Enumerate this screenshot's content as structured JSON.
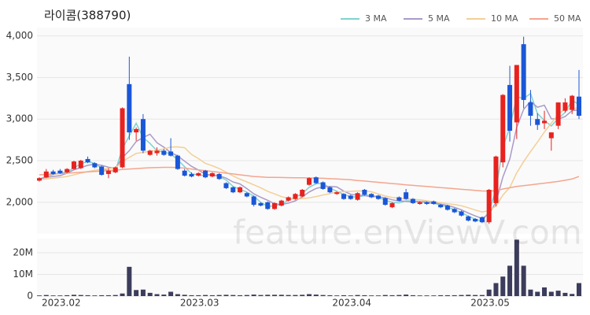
{
  "chart_data": [
    {
      "type": "candlestick",
      "title": "라이콤(388790)",
      "watermark": "feature.enViewV.com",
      "up_color": "#e8221f",
      "down_color": "#1a56d8",
      "ylim": [
        1620,
        4100
      ],
      "yticks": [
        {
          "value": 2000,
          "label": "2,000"
        },
        {
          "value": 2500,
          "label": "2,500"
        },
        {
          "value": 3000,
          "label": "3,000"
        },
        {
          "value": 3500,
          "label": "3,500"
        },
        {
          "value": 4000,
          "label": "4,000"
        }
      ],
      "grid": true,
      "legend": "top-right",
      "open": [
        2260,
        2300,
        2370,
        2380,
        2360,
        2400,
        2410,
        2520,
        2470,
        2430,
        2340,
        2360,
        2420,
        3420,
        2840,
        3000,
        2570,
        2590,
        2620,
        2610,
        2560,
        2380,
        2340,
        2320,
        2380,
        2310,
        2340,
        2230,
        2180,
        2120,
        2110,
        2070,
        1990,
        2000,
        1920,
        1960,
        2020,
        2040,
        2070,
        2210,
        2300,
        2240,
        2180,
        2100,
        2100,
        2080,
        2030,
        2150,
        2100,
        2080,
        2050,
        1940,
        2060,
        2120,
        2040,
        1980,
        2000,
        2010,
        1970,
        1960,
        1920,
        1890,
        1830,
        1800,
        1820,
        1760,
        1990,
        2480,
        3410,
        2960,
        3900,
        3200,
        3000,
        2950,
        2770,
        2920,
        3100,
        3110,
        3270
      ],
      "high": [
        2300,
        2400,
        2390,
        2400,
        2410,
        2500,
        2510,
        2550,
        2480,
        2440,
        2410,
        2430,
        3140,
        3750,
        2900,
        3060,
        2630,
        2660,
        2640,
        2770,
        2570,
        2400,
        2360,
        2360,
        2390,
        2360,
        2350,
        2240,
        2190,
        2190,
        2120,
        2080,
        2000,
        2010,
        2000,
        2030,
        2070,
        2110,
        2160,
        2300,
        2310,
        2250,
        2190,
        2130,
        2110,
        2090,
        2120,
        2160,
        2110,
        2090,
        2060,
        2000,
        2070,
        2160,
        2050,
        2010,
        2010,
        2020,
        1980,
        1970,
        1930,
        1900,
        1840,
        1810,
        1830,
        2160,
        2560,
        3300,
        3640,
        3650,
        3990,
        3350,
        3070,
        3100,
        2840,
        3200,
        3250,
        3290,
        3590
      ],
      "low": [
        2250,
        2290,
        2330,
        2340,
        2350,
        2390,
        2400,
        2470,
        2410,
        2320,
        2290,
        2350,
        2410,
        2750,
        2740,
        2590,
        2560,
        2560,
        2560,
        2550,
        2390,
        2310,
        2300,
        2310,
        2290,
        2300,
        2270,
        2160,
        2110,
        2110,
        2060,
        1950,
        1950,
        1910,
        1910,
        1950,
        2010,
        2030,
        2060,
        2200,
        2220,
        2150,
        2110,
        2090,
        2030,
        2030,
        2020,
        2080,
        2050,
        2030,
        1960,
        1930,
        2010,
        2030,
        1980,
        1970,
        1970,
        1970,
        1930,
        1900,
        1870,
        1830,
        1770,
        1760,
        1750,
        1740,
        1950,
        2420,
        2730,
        2760,
        3130,
        2920,
        2870,
        2880,
        2620,
        2880,
        3080,
        3060,
        3000
      ],
      "close": [
        2290,
        2370,
        2340,
        2350,
        2400,
        2490,
        2500,
        2480,
        2420,
        2330,
        2380,
        2420,
        3130,
        2840,
        2880,
        2620,
        2620,
        2620,
        2570,
        2560,
        2400,
        2320,
        2310,
        2350,
        2300,
        2350,
        2280,
        2170,
        2120,
        2180,
        2070,
        1970,
        1960,
        1920,
        1990,
        2020,
        2060,
        2100,
        2150,
        2290,
        2230,
        2160,
        2120,
        2120,
        2040,
        2040,
        2110,
        2090,
        2060,
        2040,
        1970,
        1990,
        2020,
        2040,
        1990,
        2000,
        1980,
        1980,
        1940,
        1910,
        1880,
        1840,
        1780,
        1770,
        1760,
        2150,
        2550,
        3290,
        2860,
        3650,
        3230,
        3040,
        2930,
        2980,
        2840,
        3200,
        3200,
        3280,
        3040
      ],
      "series": [
        {
          "name": "3 MA",
          "color": "#7fd3cf",
          "values": [
            2280,
            2310,
            2333,
            2353,
            2363,
            2413,
            2463,
            2490,
            2467,
            2410,
            2377,
            2377,
            2643,
            2797,
            2950,
            2780,
            2707,
            2620,
            2603,
            2583,
            2510,
            2427,
            2343,
            2327,
            2320,
            2333,
            2310,
            2267,
            2190,
            2157,
            2123,
            2073,
            2000,
            1950,
            1957,
            1977,
            2023,
            2060,
            2103,
            2180,
            2223,
            2227,
            2170,
            2133,
            2093,
            2067,
            2063,
            2080,
            2087,
            2063,
            2023,
            2000,
            1993,
            2017,
            2017,
            2010,
            1990,
            1987,
            1967,
            1943,
            1910,
            1877,
            1833,
            1797,
            1770,
            1893,
            2153,
            2663,
            2900,
            3267,
            3247,
            3307,
            3067,
            2983,
            2917,
            3007,
            3080,
            3227,
            3173
          ]
        },
        {
          "name": "5 MA",
          "color": "#a99ac8",
          "values": [
            2280,
            2300,
            2310,
            2320,
            2350,
            2390,
            2416,
            2444,
            2458,
            2444,
            2422,
            2406,
            2536,
            2620,
            2730,
            2778,
            2818,
            2716,
            2662,
            2598,
            2558,
            2494,
            2432,
            2388,
            2336,
            2326,
            2318,
            2290,
            2244,
            2220,
            2164,
            2102,
            2060,
            2024,
            1982,
            1972,
            1990,
            2018,
            2064,
            2124,
            2166,
            2186,
            2190,
            2184,
            2134,
            2096,
            2086,
            2080,
            2068,
            2068,
            2054,
            2030,
            2016,
            2012,
            2002,
            2008,
            2006,
            1998,
            1978,
            1962,
            1938,
            1910,
            1870,
            1836,
            1806,
            1860,
            2002,
            2304,
            2522,
            2900,
            3116,
            3214,
            3142,
            3166,
            3004,
            2998,
            3030,
            3100,
            3112
          ]
        },
        {
          "name": "10 MA",
          "color": "#f3cf96",
          "values": [
            2270,
            2280,
            2290,
            2300,
            2310,
            2330,
            2350,
            2370,
            2385,
            2397,
            2406,
            2411,
            2490,
            2539,
            2587,
            2600,
            2612,
            2626,
            2641,
            2664,
            2666,
            2656,
            2574,
            2525,
            2467,
            2440,
            2406,
            2361,
            2316,
            2278,
            2245,
            2210,
            2175,
            2132,
            2101,
            2068,
            2046,
            2039,
            2042,
            2053,
            2069,
            2088,
            2104,
            2124,
            2129,
            2131,
            2136,
            2135,
            2126,
            2101,
            2075,
            2058,
            2048,
            2040,
            2035,
            2031,
            2018,
            2007,
            1995,
            1982,
            1973,
            1958,
            1934,
            1907,
            1884,
            1899,
            1956,
            2087,
            2179,
            2353,
            2488,
            2608,
            2723,
            2844,
            2952,
            3057,
            3122,
            3121,
            3139
          ]
        },
        {
          "name": "50 MA",
          "color": "#f4a58e",
          "values": [
            2330,
            2335,
            2340,
            2345,
            2350,
            2355,
            2360,
            2365,
            2370,
            2375,
            2380,
            2385,
            2395,
            2400,
            2405,
            2410,
            2415,
            2418,
            2420,
            2420,
            2418,
            2410,
            2400,
            2390,
            2380,
            2370,
            2360,
            2350,
            2340,
            2330,
            2320,
            2310,
            2305,
            2300,
            2300,
            2298,
            2296,
            2295,
            2294,
            2292,
            2290,
            2288,
            2284,
            2280,
            2275,
            2270,
            2262,
            2255,
            2248,
            2240,
            2232,
            2225,
            2218,
            2210,
            2203,
            2196,
            2190,
            2183,
            2176,
            2170,
            2163,
            2156,
            2150,
            2143,
            2136,
            2135,
            2140,
            2160,
            2175,
            2190,
            2200,
            2210,
            2220,
            2230,
            2240,
            2250,
            2265,
            2280,
            2310
          ]
        }
      ]
    },
    {
      "type": "bar",
      "color": "#3c3c5c",
      "categories": [
        "2023.02",
        null,
        null,
        null,
        null,
        null,
        null,
        null,
        null,
        null,
        null,
        null,
        null,
        null,
        null,
        null,
        null,
        null,
        null,
        null,
        "2023.03",
        null,
        null,
        null,
        null,
        null,
        null,
        null,
        null,
        null,
        null,
        null,
        null,
        null,
        null,
        null,
        null,
        null,
        null,
        null,
        null,
        null,
        "2023.04",
        null,
        null,
        null,
        null,
        null,
        null,
        null,
        null,
        null,
        null,
        null,
        null,
        null,
        null,
        null,
        null,
        null,
        null,
        null,
        "2023.05",
        null,
        null,
        null,
        null,
        null,
        null,
        null,
        null,
        null,
        null,
        null,
        null,
        null,
        null,
        null,
        null
      ],
      "values": [
        300000,
        500000,
        300000,
        300000,
        400000,
        600000,
        500000,
        400000,
        300000,
        400000,
        400000,
        500000,
        1200000,
        13500000,
        2800000,
        3000000,
        1500000,
        900000,
        700000,
        2000000,
        900000,
        600000,
        400000,
        400000,
        500000,
        400000,
        500000,
        600000,
        500000,
        400000,
        500000,
        700000,
        500000,
        600000,
        600000,
        600000,
        500000,
        500000,
        600000,
        900000,
        700000,
        500000,
        400000,
        300000,
        400000,
        300000,
        500000,
        400000,
        300000,
        300000,
        500000,
        400000,
        500000,
        700000,
        400000,
        300000,
        300000,
        300000,
        400000,
        400000,
        400000,
        500000,
        600000,
        500000,
        500000,
        3000000,
        6000000,
        9000000,
        14000000,
        26000000,
        14000000,
        3000000,
        2000000,
        4000000,
        2000000,
        2500000,
        1500000,
        1000000,
        6000000
      ],
      "ylim": [
        0,
        26500000
      ],
      "yticks": [
        0,
        {
          "value": 10000000,
          "label": "10M"
        },
        {
          "value": 20000000,
          "label": "20M"
        }
      ]
    }
  ]
}
